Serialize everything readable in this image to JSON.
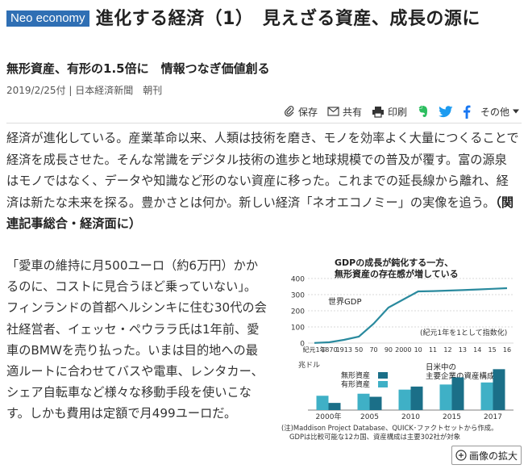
{
  "article": {
    "badge": "Neo economy",
    "title": "進化する経済（1）　見えざる資産、成長の源に",
    "subtitle": "無形資産、有形の1.5倍に　情報つなぎ価値創る",
    "meta": "2019/2/25付 | 日本経済新聞　朝刊",
    "lead": "経済が進化している。産業革命以来、人類は技術を磨き、モノを効率よく大量につくることで経済を成長させた。そんな常識をデジタル技術の進歩と地球規模での普及が覆す。富の源泉はモノではなく、データや知識など形のない資産に移った。これまでの延長線から離れ、経済は新たな未来を探る。豊かさとは何か。新しい経済「ネオエコノミー」の実像を追う。",
    "lead_link": "（関連記事総合・経済面に）",
    "body": "「愛車の維持に月500ユーロ（約6万円）かかるのに、コストに見合うほど乗っていない」。フィンランドの首都ヘルシンキに住む30代の会社経営者、イェッセ・ペウララ氏は1年前、愛車のBMWを売り払った。いまは目的地への最適ルートに合わせてバスや電車、レンタカー、シェア自転車など様々な移動手段を使いこなす。しかも費用は定額で月499ユーロだ。"
  },
  "share": {
    "save": "保存",
    "share": "共有",
    "print": "印刷",
    "more": "その他"
  },
  "zoom_label": "画像の拡大",
  "colors": {
    "badge": "#2f6fb4",
    "line": "#2a8a9e",
    "intangible": "#1b6f88",
    "tangible": "#3fb0c6",
    "share_blue": "#1d9bf0",
    "facebook": "#1877f2",
    "evernote": "#2dbe60"
  },
  "chart_data": [
    {
      "type": "line",
      "title": "GDPの成長が鈍化する一方、無形資産の存在感が増している",
      "series": [
        {
          "name": "世界GDP",
          "x": [
            "紀元1年",
            "1870",
            "1913",
            "50",
            "70",
            "90",
            "2000",
            "10",
            "11",
            "12",
            "13",
            "14",
            "15",
            "16"
          ],
          "values": [
            1,
            5,
            20,
            40,
            120,
            220,
            270,
            320,
            322,
            325,
            328,
            332,
            336,
            340
          ]
        }
      ],
      "ylim": [
        0,
        400
      ],
      "yticks": [
        "0",
        "100",
        "200",
        "300",
        "400"
      ],
      "note": "(紀元1年を1として指数化)"
    },
    {
      "type": "bar",
      "title": "日米中の主要企業の資産構成",
      "ylabel": "兆ドル",
      "categories": [
        "2000年",
        "2005",
        "2010",
        "2015",
        "2017"
      ],
      "series": [
        {
          "name": "無形資産",
          "values": [
            0.7,
            1.3,
            2.3,
            3.2,
            4.0
          ]
        },
        {
          "name": "有形資産",
          "values": [
            1.4,
            1.6,
            2.0,
            2.5,
            2.7
          ]
        }
      ],
      "source": "(注)Maddison Project Database、QUICK･ファクトセットから作成。GDPは比較可能な12カ国、資産構成は主要302社が対象"
    }
  ]
}
